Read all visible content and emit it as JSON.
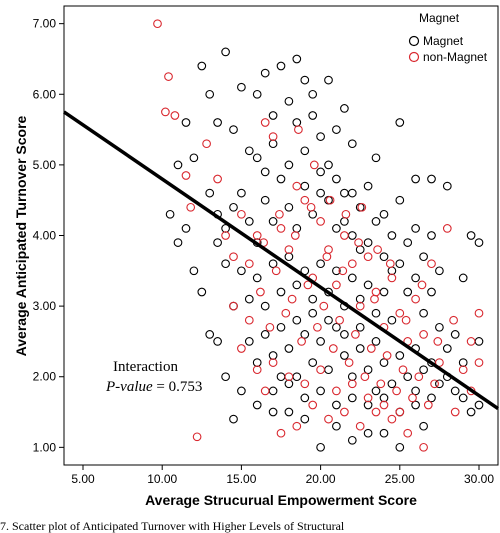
{
  "chart_data": {
    "type": "scatter",
    "xlabel": "Average Strucurual Empowerment Score",
    "ylabel": "Average Anticipated Turnover Score",
    "xlim": [
      3.8,
      31.2
    ],
    "ylim": [
      0.75,
      7.25
    ],
    "xticks": [
      "5.00",
      "10.00",
      "15.00",
      "20.00",
      "25.00",
      "30.00"
    ],
    "yticks": [
      "1.00",
      "2.00",
      "3.00",
      "4.00",
      "5.00",
      "6.00",
      "7.00"
    ],
    "legend": {
      "title": "Magnet",
      "placement": "top-right",
      "entries": [
        "Magnet",
        "non-Magnet"
      ]
    },
    "series": [
      {
        "name": "Magnet",
        "color": "#000000",
        "marker": "open-circle",
        "points": [
          [
            10.5,
            4.3
          ],
          [
            11.0,
            5.0
          ],
          [
            11.5,
            5.6
          ],
          [
            12.0,
            5.1
          ],
          [
            12.5,
            6.4
          ],
          [
            13.0,
            6.0
          ],
          [
            13.5,
            5.6
          ],
          [
            14.0,
            6.6
          ],
          [
            14.5,
            5.5
          ],
          [
            15.0,
            6.1
          ],
          [
            15.5,
            5.2
          ],
          [
            16.0,
            6.0
          ],
          [
            16.5,
            6.3
          ],
          [
            17.0,
            5.7
          ],
          [
            17.5,
            6.4
          ],
          [
            18.0,
            5.9
          ],
          [
            18.5,
            6.5
          ],
          [
            19.0,
            6.2
          ],
          [
            19.5,
            6.0
          ],
          [
            20.0,
            5.4
          ],
          [
            20.5,
            6.2
          ],
          [
            21.0,
            5.5
          ],
          [
            21.5,
            5.8
          ],
          [
            22.0,
            5.3
          ],
          [
            23.5,
            5.1
          ],
          [
            25.0,
            5.6
          ],
          [
            26.0,
            4.8
          ],
          [
            27.0,
            4.8
          ],
          [
            28.0,
            4.7
          ],
          [
            29.5,
            4.0
          ],
          [
            30.0,
            3.9
          ],
          [
            29.0,
            3.4
          ],
          [
            28.0,
            2.4
          ],
          [
            28.5,
            2.6
          ],
          [
            29.0,
            2.2
          ],
          [
            30.0,
            2.5
          ],
          [
            30.0,
            1.6
          ],
          [
            29.5,
            1.5
          ],
          [
            27.0,
            1.7
          ],
          [
            26.0,
            1.8
          ],
          [
            26.5,
            1.3
          ],
          [
            25.0,
            1.0
          ],
          [
            24.0,
            1.2
          ],
          [
            23.0,
            1.2
          ],
          [
            22.0,
            1.1
          ],
          [
            21.0,
            1.3
          ],
          [
            20.0,
            1.0
          ],
          [
            19.0,
            1.4
          ],
          [
            18.0,
            1.5
          ],
          [
            17.0,
            1.5
          ],
          [
            16.0,
            1.6
          ],
          [
            15.0,
            1.8
          ],
          [
            14.5,
            1.4
          ],
          [
            14.0,
            2.0
          ],
          [
            13.5,
            2.5
          ],
          [
            13.0,
            2.6
          ],
          [
            12.5,
            3.2
          ],
          [
            12.0,
            3.5
          ],
          [
            11.5,
            4.1
          ],
          [
            11.0,
            3.9
          ],
          [
            13.0,
            4.6
          ],
          [
            13.5,
            4.3
          ],
          [
            14.0,
            4.1
          ],
          [
            14.5,
            4.4
          ],
          [
            15.0,
            4.6
          ],
          [
            15.5,
            4.2
          ],
          [
            16.0,
            3.9
          ],
          [
            16.5,
            4.5
          ],
          [
            17.0,
            4.2
          ],
          [
            17.5,
            4.8
          ],
          [
            18.0,
            4.4
          ],
          [
            18.5,
            4.1
          ],
          [
            19.0,
            4.7
          ],
          [
            19.5,
            4.3
          ],
          [
            20.0,
            4.9
          ],
          [
            20.5,
            4.5
          ],
          [
            21.0,
            4.1
          ],
          [
            21.5,
            4.6
          ],
          [
            22.0,
            4.0
          ],
          [
            22.5,
            4.4
          ],
          [
            23.0,
            3.9
          ],
          [
            23.5,
            4.2
          ],
          [
            24.0,
            3.7
          ],
          [
            24.5,
            4.0
          ],
          [
            25.0,
            3.6
          ],
          [
            25.5,
            3.9
          ],
          [
            26.0,
            3.4
          ],
          [
            26.5,
            3.7
          ],
          [
            27.0,
            3.2
          ],
          [
            27.5,
            3.5
          ],
          [
            15.0,
            3.5
          ],
          [
            15.5,
            3.1
          ],
          [
            16.0,
            3.4
          ],
          [
            16.5,
            3.0
          ],
          [
            17.0,
            3.6
          ],
          [
            17.5,
            3.2
          ],
          [
            18.0,
            3.7
          ],
          [
            18.5,
            3.3
          ],
          [
            19.0,
            3.5
          ],
          [
            19.5,
            3.1
          ],
          [
            20.0,
            3.6
          ],
          [
            20.5,
            3.2
          ],
          [
            21.0,
            3.5
          ],
          [
            21.5,
            3.0
          ],
          [
            22.0,
            3.4
          ],
          [
            22.5,
            3.1
          ],
          [
            23.0,
            3.3
          ],
          [
            23.5,
            2.9
          ],
          [
            24.0,
            3.2
          ],
          [
            24.5,
            2.8
          ],
          [
            15.5,
            2.5
          ],
          [
            16.0,
            2.2
          ],
          [
            16.5,
            2.6
          ],
          [
            17.0,
            2.3
          ],
          [
            17.5,
            2.7
          ],
          [
            18.0,
            2.4
          ],
          [
            18.5,
            2.0
          ],
          [
            19.0,
            2.6
          ],
          [
            19.5,
            2.2
          ],
          [
            20.0,
            2.5
          ],
          [
            20.5,
            2.1
          ],
          [
            21.0,
            2.7
          ],
          [
            21.5,
            2.3
          ],
          [
            22.0,
            2.0
          ],
          [
            22.5,
            2.4
          ],
          [
            23.0,
            2.1
          ],
          [
            23.5,
            2.5
          ],
          [
            24.0,
            2.2
          ],
          [
            24.5,
            1.9
          ],
          [
            25.0,
            2.3
          ],
          [
            25.5,
            2.0
          ],
          [
            26.0,
            2.4
          ],
          [
            26.5,
            2.1
          ],
          [
            27.0,
            2.2
          ],
          [
            27.5,
            1.9
          ],
          [
            28.0,
            2.0
          ],
          [
            17.0,
            1.8
          ],
          [
            18.0,
            1.9
          ],
          [
            19.0,
            1.7
          ],
          [
            20.0,
            1.8
          ],
          [
            21.0,
            1.6
          ],
          [
            22.0,
            1.7
          ],
          [
            23.0,
            1.6
          ],
          [
            24.0,
            1.7
          ],
          [
            25.0,
            1.5
          ],
          [
            26.0,
            1.6
          ],
          [
            16.0,
            5.1
          ],
          [
            17.0,
            5.3
          ],
          [
            18.0,
            5.0
          ],
          [
            19.0,
            5.2
          ],
          [
            20.0,
            4.6
          ],
          [
            21.0,
            4.8
          ],
          [
            22.0,
            4.6
          ],
          [
            23.0,
            4.7
          ],
          [
            24.0,
            4.3
          ],
          [
            25.0,
            4.5
          ],
          [
            26.0,
            4.1
          ],
          [
            27.0,
            4.0
          ],
          [
            14.0,
            3.6
          ],
          [
            14.5,
            3.0
          ],
          [
            13.5,
            3.9
          ],
          [
            17.5,
            2.0
          ],
          [
            18.5,
            2.8
          ],
          [
            19.5,
            2.9
          ],
          [
            20.5,
            2.8
          ],
          [
            21.5,
            2.6
          ],
          [
            22.5,
            2.7
          ],
          [
            23.5,
            1.8
          ],
          [
            24.5,
            3.5
          ],
          [
            25.5,
            3.2
          ],
          [
            26.5,
            2.9
          ],
          [
            27.5,
            2.7
          ],
          [
            28.5,
            1.8
          ],
          [
            29.0,
            1.7
          ],
          [
            16.5,
            4.9
          ],
          [
            18.5,
            5.6
          ],
          [
            19.5,
            5.7
          ],
          [
            20.5,
            5.0
          ],
          [
            21.5,
            4.2
          ],
          [
            22.5,
            3.8
          ]
        ]
      },
      {
        "name": "non-Magnet",
        "color": "#d9282f",
        "marker": "open-circle",
        "points": [
          [
            9.7,
            7.0
          ],
          [
            10.4,
            6.25
          ],
          [
            10.2,
            5.75
          ],
          [
            11.5,
            4.85
          ],
          [
            11.8,
            4.4
          ],
          [
            12.2,
            1.15
          ],
          [
            13.5,
            4.8
          ],
          [
            14.0,
            4.0
          ],
          [
            14.5,
            3.7
          ],
          [
            15.0,
            4.3
          ],
          [
            15.5,
            3.6
          ],
          [
            16.0,
            4.0
          ],
          [
            16.5,
            5.6
          ],
          [
            17.0,
            5.4
          ],
          [
            17.5,
            4.1
          ],
          [
            18.0,
            3.8
          ],
          [
            18.5,
            4.7
          ],
          [
            19.0,
            4.5
          ],
          [
            19.5,
            3.4
          ],
          [
            20.0,
            4.2
          ],
          [
            20.5,
            3.8
          ],
          [
            21.0,
            3.3
          ],
          [
            21.5,
            4.0
          ],
          [
            22.0,
            3.6
          ],
          [
            22.5,
            3.0
          ],
          [
            23.0,
            3.7
          ],
          [
            23.5,
            3.2
          ],
          [
            24.0,
            2.7
          ],
          [
            24.5,
            3.4
          ],
          [
            25.0,
            2.9
          ],
          [
            25.5,
            2.5
          ],
          [
            26.0,
            3.1
          ],
          [
            26.5,
            2.6
          ],
          [
            27.0,
            3.6
          ],
          [
            27.5,
            2.2
          ],
          [
            28.0,
            4.1
          ],
          [
            28.5,
            1.5
          ],
          [
            29.0,
            2.1
          ],
          [
            29.5,
            1.8
          ],
          [
            30.0,
            2.9
          ],
          [
            30.0,
            2.2
          ],
          [
            29.5,
            2.5
          ],
          [
            26.5,
            1.0
          ],
          [
            25.5,
            1.2
          ],
          [
            24.5,
            1.4
          ],
          [
            23.5,
            1.5
          ],
          [
            22.5,
            1.3
          ],
          [
            21.5,
            1.5
          ],
          [
            20.5,
            1.4
          ],
          [
            19.5,
            1.6
          ],
          [
            18.5,
            1.3
          ],
          [
            17.5,
            1.2
          ],
          [
            16.5,
            1.8
          ],
          [
            16.0,
            2.1
          ],
          [
            15.5,
            2.8
          ],
          [
            15.0,
            2.4
          ],
          [
            14.5,
            3.0
          ],
          [
            16.2,
            3.2
          ],
          [
            16.8,
            2.7
          ],
          [
            17.2,
            3.5
          ],
          [
            17.8,
            2.9
          ],
          [
            18.2,
            3.1
          ],
          [
            18.8,
            2.5
          ],
          [
            19.2,
            3.3
          ],
          [
            19.8,
            2.7
          ],
          [
            20.2,
            3.0
          ],
          [
            20.8,
            2.4
          ],
          [
            21.2,
            2.8
          ],
          [
            21.8,
            2.2
          ],
          [
            22.2,
            2.6
          ],
          [
            22.8,
            2.0
          ],
          [
            23.2,
            2.4
          ],
          [
            23.8,
            1.9
          ],
          [
            24.2,
            2.3
          ],
          [
            24.8,
            1.8
          ],
          [
            25.2,
            2.1
          ],
          [
            25.8,
            1.7
          ],
          [
            26.2,
            2.0
          ],
          [
            26.8,
            1.6
          ],
          [
            27.2,
            1.9
          ],
          [
            16.4,
            3.9
          ],
          [
            17.4,
            4.3
          ],
          [
            18.4,
            4.0
          ],
          [
            19.4,
            4.4
          ],
          [
            20.4,
            3.7
          ],
          [
            21.4,
            3.5
          ],
          [
            22.4,
            3.9
          ],
          [
            23.4,
            3.1
          ],
          [
            24.4,
            3.6
          ],
          [
            25.4,
            2.8
          ],
          [
            26.4,
            3.3
          ],
          [
            27.4,
            2.5
          ],
          [
            28.4,
            2.8
          ],
          [
            17.0,
            2.2
          ],
          [
            18.0,
            2.0
          ],
          [
            19.0,
            1.9
          ],
          [
            20.0,
            2.1
          ],
          [
            21.0,
            1.8
          ],
          [
            22.0,
            1.9
          ],
          [
            23.0,
            1.7
          ],
          [
            24.0,
            1.6
          ],
          [
            25.0,
            1.5
          ],
          [
            18.6,
            5.5
          ],
          [
            19.6,
            5.0
          ],
          [
            20.6,
            4.5
          ],
          [
            21.6,
            4.3
          ],
          [
            22.6,
            4.4
          ],
          [
            23.6,
            3.8
          ],
          [
            12.8,
            5.3
          ],
          [
            10.8,
            5.7
          ]
        ]
      }
    ],
    "fit_line": {
      "x": [
        3.8,
        31.2
      ],
      "y": [
        5.75,
        1.55
      ]
    },
    "annotations": [
      {
        "text_main": "Interaction",
        "text_pre": "P-value",
        "text_post": " = 0.753"
      }
    ],
    "grid": false
  },
  "caption": "7. Scatter plot of Anticipated Turnover with Higher Levels of Structural"
}
